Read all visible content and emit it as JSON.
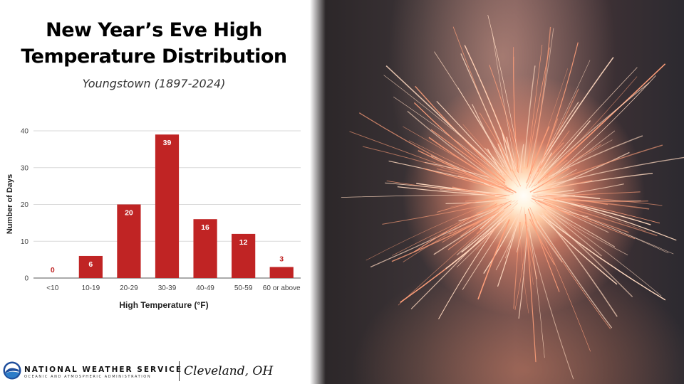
{
  "title": "New Year’s Eve High Temperature Distribution",
  "subtitle": "Youngstown (1897-2024)",
  "chart_data": {
    "type": "bar",
    "categories": [
      "<10",
      "10-19",
      "20-29",
      "30-39",
      "40-49",
      "50-59",
      "60 or above"
    ],
    "values": [
      0,
      6,
      20,
      39,
      16,
      12,
      3
    ],
    "data_labels": [
      "0",
      "6",
      "20",
      "39",
      "16",
      "12",
      "3"
    ],
    "xlabel": "High Temperature (°F)",
    "ylabel": "Number of Days",
    "ylim": [
      0,
      40
    ],
    "yticks": [
      0,
      10,
      20,
      30,
      40
    ],
    "grid": true,
    "bar_color": "#c02424",
    "gridline_color": "#d9d9d9"
  },
  "footer": {
    "org": "NATIONAL WEATHER SERVICE",
    "org_sub": "OCEANIC AND ATMOSPHERIC ADMINISTRATION",
    "office": "Cleveland, OH",
    "logo_icon": "noaa-logo-icon"
  },
  "photo": {
    "subject": "sparkler-photo"
  }
}
